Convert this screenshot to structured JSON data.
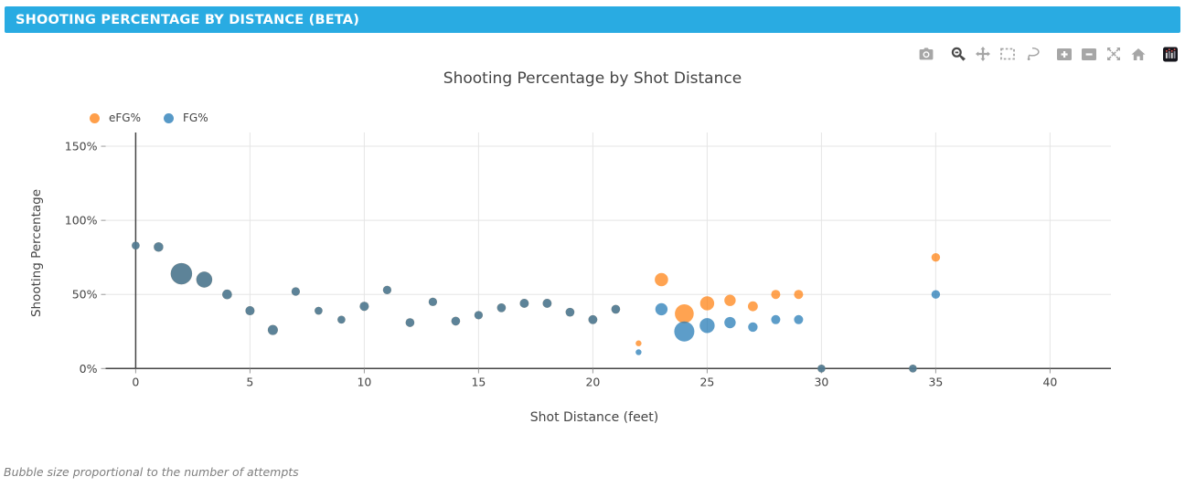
{
  "header": {
    "title": "SHOOTING PERCENTAGE BY DISTANCE (BETA)",
    "background": "#29abe2"
  },
  "modebar": {
    "icons": [
      "camera",
      "zoom",
      "pan",
      "box-select",
      "lasso-select",
      "zoom-in",
      "zoom-out",
      "autoscale",
      "reset-axes",
      "plotly-logo"
    ],
    "active_icon": "zoom",
    "icon_color": "#a6a6a6",
    "active_color": "#4a4a4a"
  },
  "footer": {
    "note": "Bubble size proportional to the number of attempts"
  },
  "chart_data": {
    "type": "scatter",
    "title": "Shooting Percentage by Shot Distance",
    "xlabel": "Shot Distance (feet)",
    "ylabel": "Shooting Percentage",
    "legend_position": "top-left",
    "grid": true,
    "xlim": [
      -1.3,
      42.7
    ],
    "ylim": [
      -3.5,
      159
    ],
    "x_ticks": [
      {
        "v": 0,
        "label": "0"
      },
      {
        "v": 5,
        "label": "5"
      },
      {
        "v": 10,
        "label": "10"
      },
      {
        "v": 15,
        "label": "15"
      },
      {
        "v": 20,
        "label": "20"
      },
      {
        "v": 25,
        "label": "25"
      },
      {
        "v": 30,
        "label": "30"
      },
      {
        "v": 35,
        "label": "35"
      },
      {
        "v": 40,
        "label": "40"
      }
    ],
    "y_ticks": [
      {
        "v": 0,
        "label": "0%"
      },
      {
        "v": 50,
        "label": "50%"
      },
      {
        "v": 100,
        "label": "100%"
      },
      {
        "v": 150,
        "label": "150%"
      }
    ],
    "marker_opacity": 0.72,
    "size_note": "point format [shot_distance_ft, shooting_pct, bubble_radius_px]; bubble radius encodes number of attempts (attempt counts not shown on screen)",
    "series": [
      {
        "name": "eFG%",
        "color": "#ff7f0e",
        "points": [
          [
            0,
            83,
            4.3
          ],
          [
            1,
            82,
            5.2
          ],
          [
            2,
            64,
            11.7
          ],
          [
            3,
            60,
            8.7
          ],
          [
            4,
            50,
            5.3
          ],
          [
            5,
            39,
            5.0
          ],
          [
            6,
            26,
            5.5
          ],
          [
            7,
            52,
            4.6
          ],
          [
            8,
            39,
            4.3
          ],
          [
            9,
            33,
            4.3
          ],
          [
            10,
            42,
            5.0
          ],
          [
            11,
            53,
            4.6
          ],
          [
            12,
            31,
            4.8
          ],
          [
            13,
            45,
            4.6
          ],
          [
            14,
            32,
            4.8
          ],
          [
            15,
            36,
            4.6
          ],
          [
            16,
            41,
            4.8
          ],
          [
            17,
            44,
            4.9
          ],
          [
            18,
            44,
            4.9
          ],
          [
            19,
            38,
            4.8
          ],
          [
            20,
            33,
            4.9
          ],
          [
            21,
            40,
            4.8
          ],
          [
            22,
            17,
            3.2
          ],
          [
            23,
            60,
            7.3
          ],
          [
            24,
            37,
            10.3
          ],
          [
            25,
            44,
            7.7
          ],
          [
            26,
            46,
            6.2
          ],
          [
            27,
            42,
            5.4
          ],
          [
            28,
            50,
            5.0
          ],
          [
            29,
            50,
            5.0
          ],
          [
            30,
            0,
            4.3
          ],
          [
            34,
            0,
            4.3
          ],
          [
            35,
            75,
            4.7
          ]
        ]
      },
      {
        "name": "FG%",
        "color": "#1f77b4",
        "points": [
          [
            0,
            83,
            4.3
          ],
          [
            1,
            82,
            5.2
          ],
          [
            2,
            64,
            11.7
          ],
          [
            3,
            60,
            8.7
          ],
          [
            4,
            50,
            5.3
          ],
          [
            5,
            39,
            5.0
          ],
          [
            6,
            26,
            5.5
          ],
          [
            7,
            52,
            4.6
          ],
          [
            8,
            39,
            4.3
          ],
          [
            9,
            33,
            4.3
          ],
          [
            10,
            42,
            5.0
          ],
          [
            11,
            53,
            4.6
          ],
          [
            12,
            31,
            4.8
          ],
          [
            13,
            45,
            4.6
          ],
          [
            14,
            32,
            4.8
          ],
          [
            15,
            36,
            4.6
          ],
          [
            16,
            41,
            4.8
          ],
          [
            17,
            44,
            4.9
          ],
          [
            18,
            44,
            4.9
          ],
          [
            19,
            38,
            4.8
          ],
          [
            20,
            33,
            4.9
          ],
          [
            21,
            40,
            4.8
          ],
          [
            22,
            11,
            3.2
          ],
          [
            23,
            40,
            6.7
          ],
          [
            24,
            25,
            11.0
          ],
          [
            25,
            29,
            8.2
          ],
          [
            26,
            31,
            6.2
          ],
          [
            27,
            28,
            5.2
          ],
          [
            28,
            33,
            5.0
          ],
          [
            29,
            33,
            5.0
          ],
          [
            30,
            0,
            4.3
          ],
          [
            34,
            0,
            4.3
          ],
          [
            35,
            50,
            4.7
          ]
        ]
      }
    ]
  }
}
